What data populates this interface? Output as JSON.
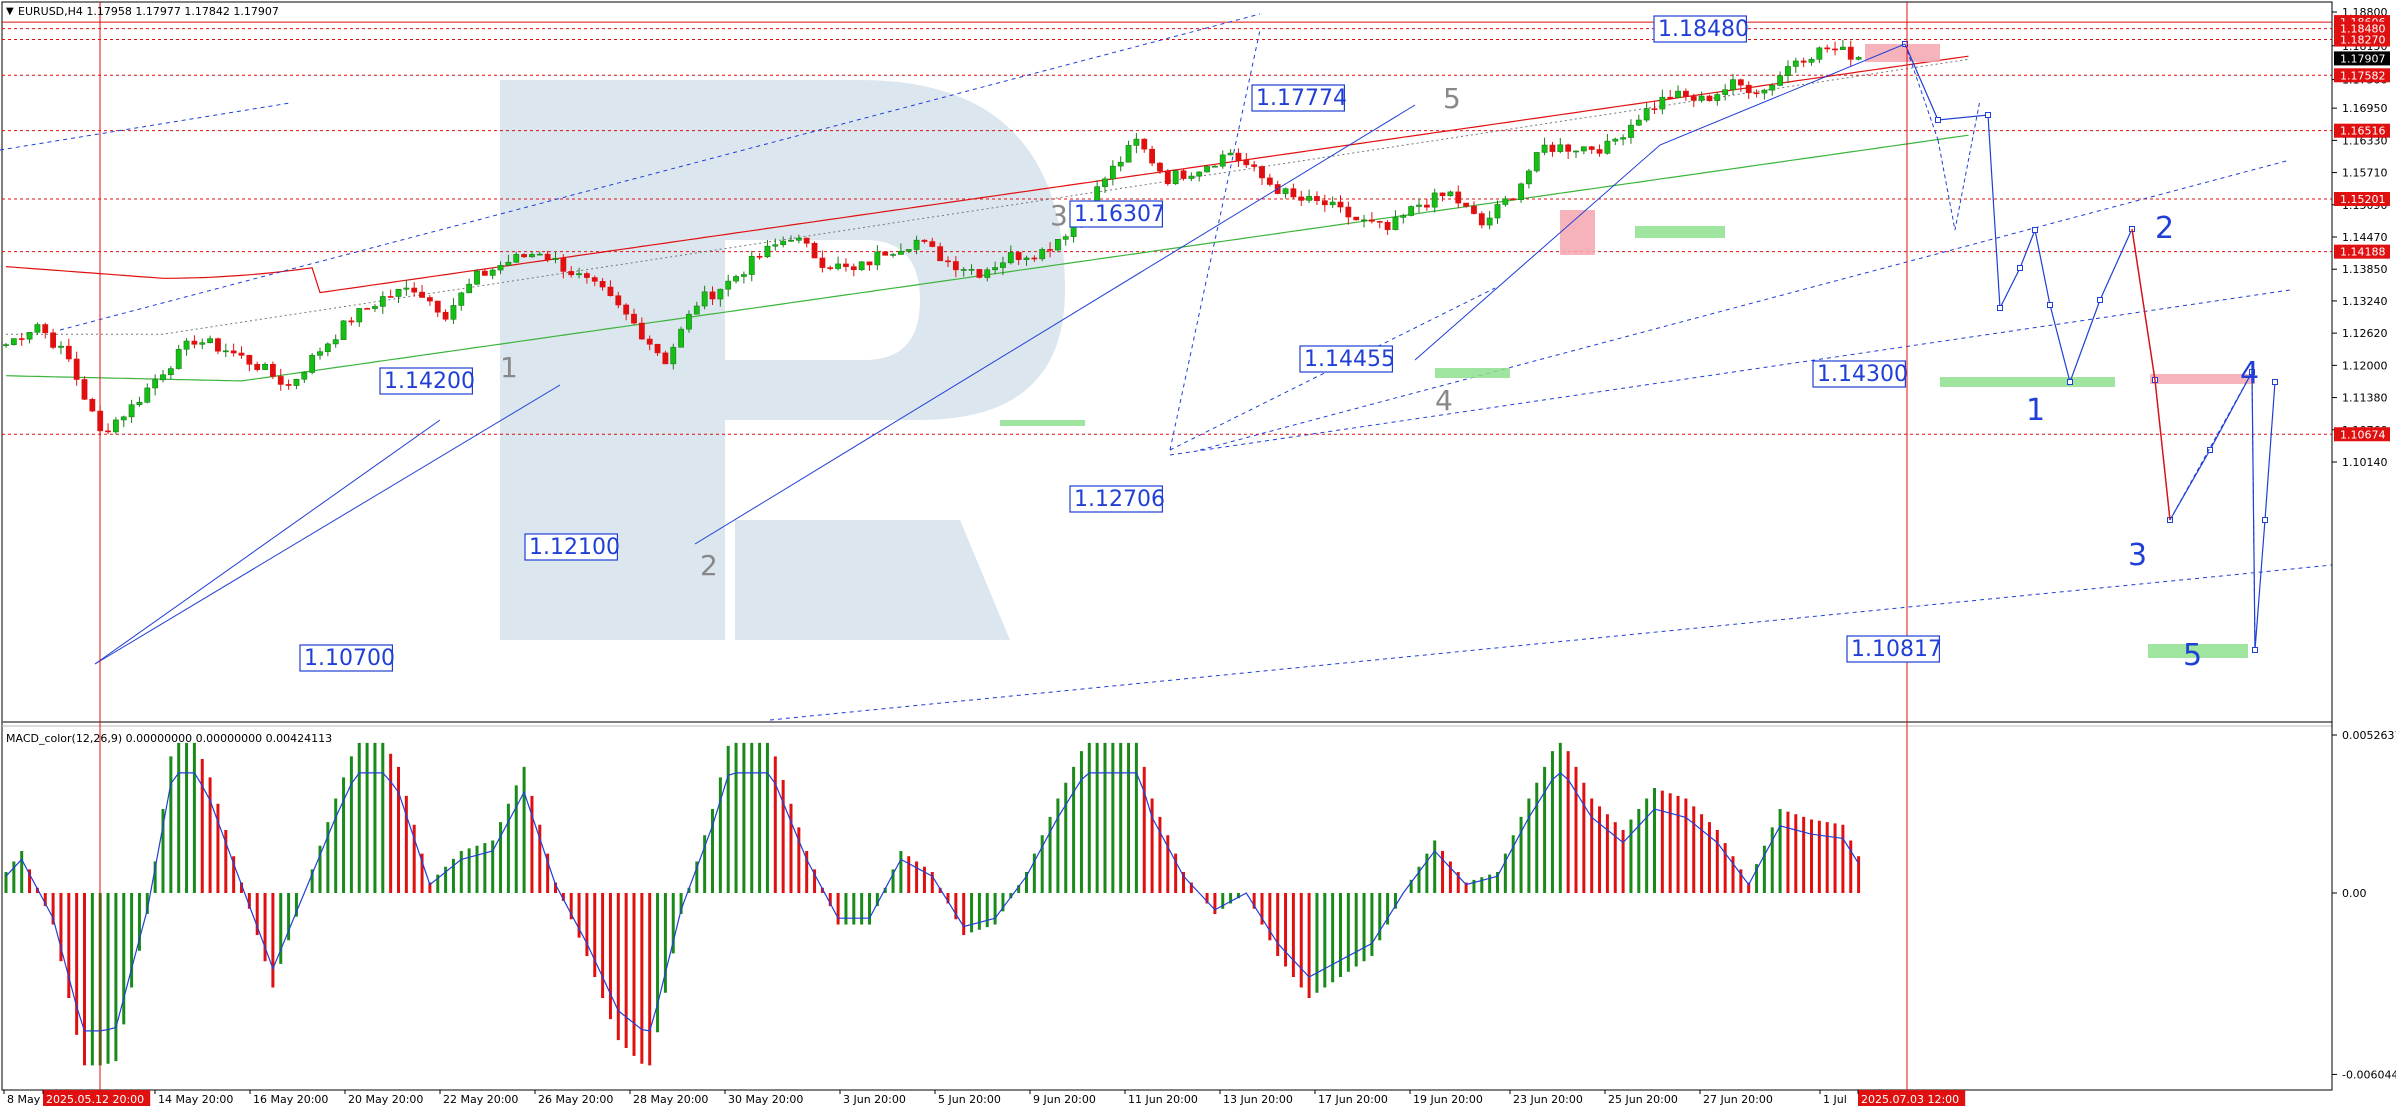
{
  "header": {
    "symbol_line": "EURUSD,H4  1.17958 1.17977 1.17842 1.17907",
    "indicator_line": "MACD_color(12,26,9) 0.00000000 0.00000000 0.00424113"
  },
  "colors": {
    "bull": "#1a7a1a",
    "bear": "#e01010",
    "wave": "#1f3fd6",
    "ma_red": "#e01010",
    "ma_green": "#3cb43c",
    "level": "#e01010",
    "label_box": "#1f3fd6",
    "watermark": "#dce6ef"
  },
  "chart_data": [
    {
      "type": "candlestick",
      "title": "EURUSD,H4",
      "ylim": [
        1.0977,
        1.1905
      ],
      "price_ticks": [
        "1.18800",
        "1.18150",
        "1.17500",
        "1.16950",
        "1.16330",
        "1.15710",
        "1.15090",
        "1.14470",
        "1.13850",
        "1.13240",
        "1.12620",
        "1.12000",
        "1.11380",
        "1.10760",
        "1.10140"
      ],
      "right_markers": [
        {
          "label": "1.18606",
          "value": 1.18606,
          "color": "#e01010"
        },
        {
          "label": "1.18480",
          "value": 1.1848,
          "color": "#e01010"
        },
        {
          "label": "1.18270",
          "value": 1.1827,
          "color": "#e01010"
        },
        {
          "label": "1.17907",
          "value": 1.17907,
          "color": "#000000"
        },
        {
          "label": "1.17582",
          "value": 1.17582,
          "color": "#e01010"
        },
        {
          "label": "1.16516",
          "value": 1.16516,
          "color": "#e01010"
        },
        {
          "label": "1.15201",
          "value": 1.15201,
          "color": "#e01010"
        },
        {
          "label": "1.14188",
          "value": 1.14188,
          "color": "#e01010"
        },
        {
          "label": "1.10674",
          "value": 1.10674,
          "color": "#e01010"
        }
      ],
      "x_ticks": [
        "8 May 2",
        "2025.05.12 20:00",
        "14 May 20:00",
        "16 May 20:00",
        "20 May 20:00",
        "22 May 20:00",
        "26 May 20:00",
        "28 May 20:00",
        "30 May 20:00",
        "3 Jun 20:00",
        "5 Jun 20:00",
        "9 Jun 20:00",
        "11 Jun 20:00",
        "13 Jun 20:00",
        "17 Jun 20:00",
        "19 Jun 20:00",
        "23 Jun 20:00",
        "25 Jun 20:00",
        "27 Jun 20:00",
        "1 Jul",
        "2025.07.03 12:00"
      ],
      "anchors": [
        [
          0,
          1.124
        ],
        [
          4,
          1.128
        ],
        [
          8,
          1.121
        ],
        [
          12,
          1.107
        ],
        [
          16,
          1.112
        ],
        [
          20,
          1.119
        ],
        [
          24,
          1.125
        ],
        [
          28,
          1.123
        ],
        [
          32,
          1.12
        ],
        [
          36,
          1.116
        ],
        [
          40,
          1.123
        ],
        [
          44,
          1.129
        ],
        [
          48,
          1.133
        ],
        [
          52,
          1.135
        ],
        [
          56,
          1.13
        ],
        [
          60,
          1.137
        ],
        [
          64,
          1.14
        ],
        [
          68,
          1.142
        ],
        [
          72,
          1.138
        ],
        [
          76,
          1.134
        ],
        [
          80,
          1.128
        ],
        [
          84,
          1.121
        ],
        [
          88,
          1.132
        ],
        [
          92,
          1.136
        ],
        [
          96,
          1.141
        ],
        [
          100,
          1.145
        ],
        [
          104,
          1.14
        ],
        [
          108,
          1.138
        ],
        [
          112,
          1.142
        ],
        [
          116,
          1.144
        ],
        [
          120,
          1.14
        ],
        [
          124,
          1.138
        ],
        [
          128,
          1.141
        ],
        [
          132,
          1.142
        ],
        [
          136,
          1.147
        ],
        [
          140,
          1.156
        ],
        [
          144,
          1.163
        ],
        [
          148,
          1.156
        ],
        [
          152,
          1.158
        ],
        [
          156,
          1.161
        ],
        [
          160,
          1.156
        ],
        [
          164,
          1.152
        ],
        [
          168,
          1.151
        ],
        [
          172,
          1.148
        ],
        [
          176,
          1.146
        ],
        [
          180,
          1.151
        ],
        [
          184,
          1.153
        ],
        [
          188,
          1.147
        ],
        [
          192,
          1.153
        ],
        [
          196,
          1.162
        ],
        [
          200,
          1.162
        ],
        [
          204,
          1.162
        ],
        [
          208,
          1.168
        ],
        [
          212,
          1.172
        ],
        [
          216,
          1.171
        ],
        [
          220,
          1.174
        ],
        [
          224,
          1.173
        ],
        [
          228,
          1.179
        ],
        [
          232,
          1.181
        ],
        [
          236,
          1.1795
        ]
      ],
      "candle_count": 237,
      "macd": {
        "label": "MACD_color(12,26,9)",
        "ylim": [
          -0.0060442,
          0.0052637
        ],
        "ticks": [
          "0.0052637",
          "0.00",
          "-0.0060442"
        ]
      },
      "wave_labels_grey": [
        "1",
        "2",
        "3",
        "4",
        "5"
      ],
      "wave_labels_blue": [
        "1",
        "2",
        "3",
        "4",
        "5"
      ],
      "boxed_labels": [
        "1.18480",
        "1.17774",
        "1.16307",
        "1.14200",
        "1.14455",
        "1.14300",
        "1.12100",
        "1.12706",
        "1.10700",
        "1.10817"
      ]
    }
  ]
}
